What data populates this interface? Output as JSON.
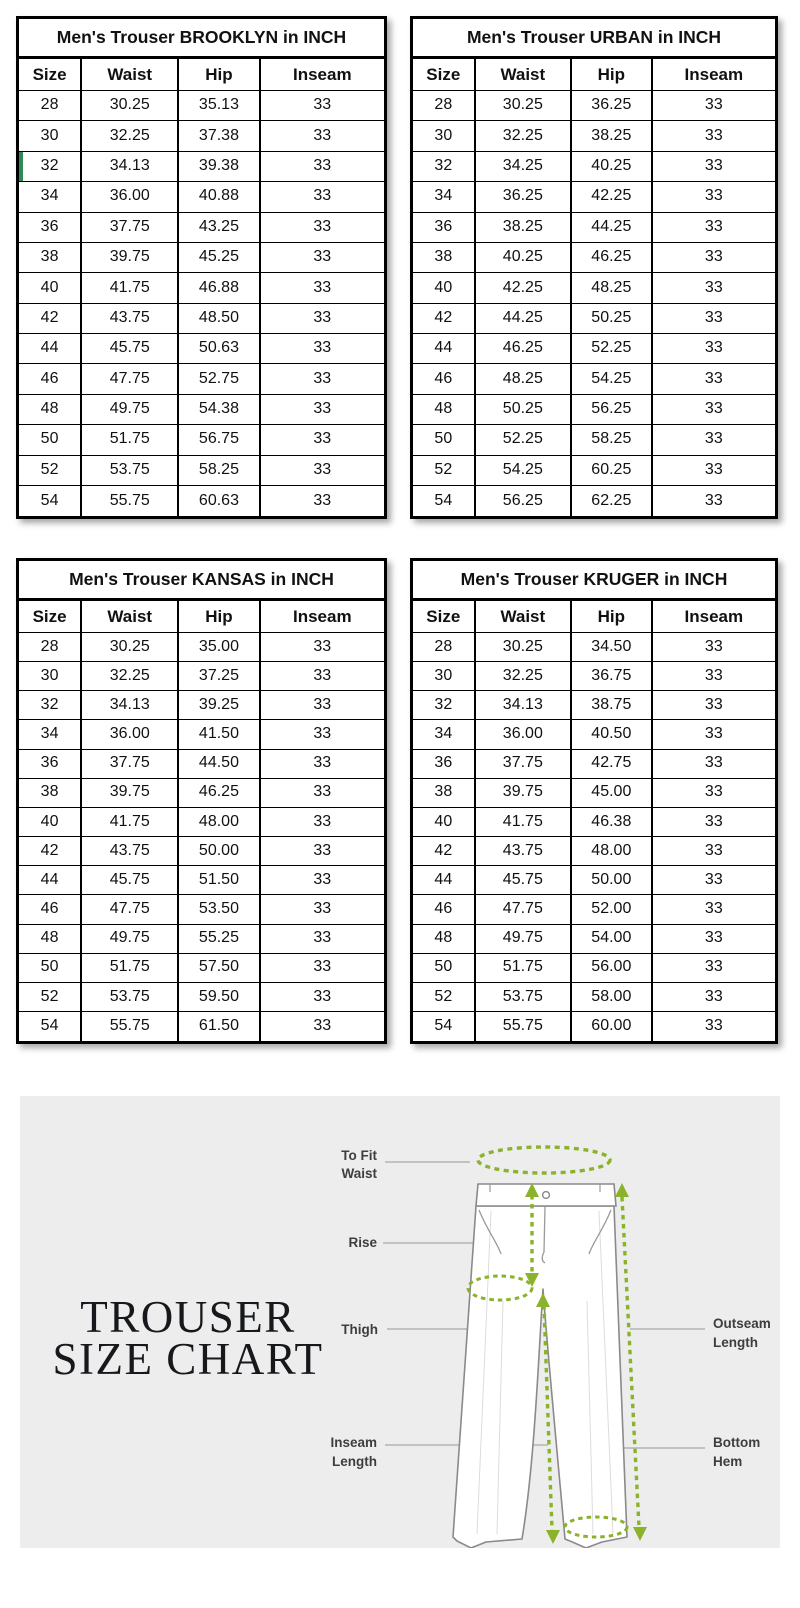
{
  "colors": {
    "table_border": "#000000",
    "row_marker_green": "#2e8b57",
    "diagram_green": "#8ab32b",
    "panel_background": "#ededed",
    "trouser_outline_gray": "#8a8a8a",
    "connector_gray": "#b4b4b4",
    "label_text": "#3e3e3e"
  },
  "size_tables": [
    {
      "title": "Men's Trouser BROOKLYN in INCH",
      "columns": [
        "Size",
        "Waist",
        "Hip",
        "Inseam"
      ],
      "highlight_size": "32",
      "rows": [
        [
          "28",
          "30.25",
          "35.13",
          "33"
        ],
        [
          "30",
          "32.25",
          "37.38",
          "33"
        ],
        [
          "32",
          "34.13",
          "39.38",
          "33"
        ],
        [
          "34",
          "36.00",
          "40.88",
          "33"
        ],
        [
          "36",
          "37.75",
          "43.25",
          "33"
        ],
        [
          "38",
          "39.75",
          "45.25",
          "33"
        ],
        [
          "40",
          "41.75",
          "46.88",
          "33"
        ],
        [
          "42",
          "43.75",
          "48.50",
          "33"
        ],
        [
          "44",
          "45.75",
          "50.63",
          "33"
        ],
        [
          "46",
          "47.75",
          "52.75",
          "33"
        ],
        [
          "48",
          "49.75",
          "54.38",
          "33"
        ],
        [
          "50",
          "51.75",
          "56.75",
          "33"
        ],
        [
          "52",
          "53.75",
          "58.25",
          "33"
        ],
        [
          "54",
          "55.75",
          "60.63",
          "33"
        ]
      ]
    },
    {
      "title": "Men's Trouser URBAN in INCH",
      "columns": [
        "Size",
        "Waist",
        "Hip",
        "Inseam"
      ],
      "rows": [
        [
          "28",
          "30.25",
          "36.25",
          "33"
        ],
        [
          "30",
          "32.25",
          "38.25",
          "33"
        ],
        [
          "32",
          "34.25",
          "40.25",
          "33"
        ],
        [
          "34",
          "36.25",
          "42.25",
          "33"
        ],
        [
          "36",
          "38.25",
          "44.25",
          "33"
        ],
        [
          "38",
          "40.25",
          "46.25",
          "33"
        ],
        [
          "40",
          "42.25",
          "48.25",
          "33"
        ],
        [
          "42",
          "44.25",
          "50.25",
          "33"
        ],
        [
          "44",
          "46.25",
          "52.25",
          "33"
        ],
        [
          "46",
          "48.25",
          "54.25",
          "33"
        ],
        [
          "48",
          "50.25",
          "56.25",
          "33"
        ],
        [
          "50",
          "52.25",
          "58.25",
          "33"
        ],
        [
          "52",
          "54.25",
          "60.25",
          "33"
        ],
        [
          "54",
          "56.25",
          "62.25",
          "33"
        ]
      ]
    },
    {
      "title": "Men's Trouser KANSAS in INCH",
      "columns": [
        "Size",
        "Waist",
        "Hip",
        "Inseam"
      ],
      "rows": [
        [
          "28",
          "30.25",
          "35.00",
          "33"
        ],
        [
          "30",
          "32.25",
          "37.25",
          "33"
        ],
        [
          "32",
          "34.13",
          "39.25",
          "33"
        ],
        [
          "34",
          "36.00",
          "41.50",
          "33"
        ],
        [
          "36",
          "37.75",
          "44.50",
          "33"
        ],
        [
          "38",
          "39.75",
          "46.25",
          "33"
        ],
        [
          "40",
          "41.75",
          "48.00",
          "33"
        ],
        [
          "42",
          "43.75",
          "50.00",
          "33"
        ],
        [
          "44",
          "45.75",
          "51.50",
          "33"
        ],
        [
          "46",
          "47.75",
          "53.50",
          "33"
        ],
        [
          "48",
          "49.75",
          "55.25",
          "33"
        ],
        [
          "50",
          "51.75",
          "57.50",
          "33"
        ],
        [
          "52",
          "53.75",
          "59.50",
          "33"
        ],
        [
          "54",
          "55.75",
          "61.50",
          "33"
        ]
      ]
    },
    {
      "title": "Men's Trouser KRUGER in INCH",
      "columns": [
        "Size",
        "Waist",
        "Hip",
        "Inseam"
      ],
      "rows": [
        [
          "28",
          "30.25",
          "34.50",
          "33"
        ],
        [
          "30",
          "32.25",
          "36.75",
          "33"
        ],
        [
          "32",
          "34.13",
          "38.75",
          "33"
        ],
        [
          "34",
          "36.00",
          "40.50",
          "33"
        ],
        [
          "36",
          "37.75",
          "42.75",
          "33"
        ],
        [
          "38",
          "39.75",
          "45.00",
          "33"
        ],
        [
          "40",
          "41.75",
          "46.38",
          "33"
        ],
        [
          "42",
          "43.75",
          "48.00",
          "33"
        ],
        [
          "44",
          "45.75",
          "50.00",
          "33"
        ],
        [
          "46",
          "47.75",
          "52.00",
          "33"
        ],
        [
          "48",
          "49.75",
          "54.00",
          "33"
        ],
        [
          "50",
          "51.75",
          "56.00",
          "33"
        ],
        [
          "52",
          "53.75",
          "58.00",
          "33"
        ],
        [
          "54",
          "55.75",
          "60.00",
          "33"
        ]
      ]
    }
  ],
  "diagram": {
    "title_line1": "TROUSER",
    "title_line2": "SIZE CHART",
    "labels": {
      "to_fit_waist_line1": "To Fit",
      "to_fit_waist_line2": "Waist",
      "rise": "Rise",
      "thigh": "Thigh",
      "inseam_line1": "Inseam",
      "inseam_line2": "Length",
      "outseam_line1": "Outseam",
      "outseam_line2": "Length",
      "bottom_hem_line1": "Bottom",
      "bottom_hem_line2": "Hem"
    }
  }
}
